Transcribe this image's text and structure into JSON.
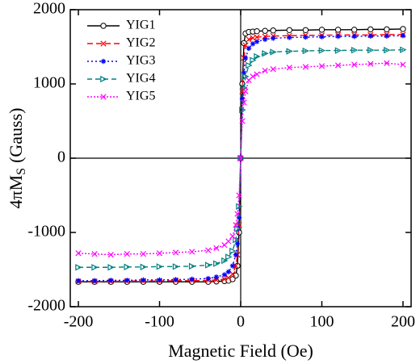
{
  "chart_data": {
    "type": "line",
    "xlabel": "Magnetic Field (Oe)",
    "ylabel_parts": [
      "4πM",
      "S",
      "(Gauss)"
    ],
    "x": [
      -200,
      -180,
      -160,
      -140,
      -120,
      -100,
      -80,
      -60,
      -40,
      -30,
      -20,
      -15,
      -10,
      -6,
      -4,
      -2,
      0,
      2,
      4,
      6,
      10,
      15,
      20,
      30,
      40,
      60,
      80,
      100,
      120,
      140,
      160,
      180,
      200
    ],
    "series": [
      {
        "name": "YIG1",
        "color": "#000000",
        "marker": "circle",
        "dash": "",
        "values": [
          -1665,
          -1665,
          -1665,
          -1665,
          -1665,
          -1665,
          -1665,
          -1665,
          -1665,
          -1660,
          -1655,
          -1650,
          -1630,
          -1580,
          -1450,
          -1000,
          0,
          1000,
          1550,
          1680,
          1700,
          1705,
          1710,
          1715,
          1720,
          1725,
          1725,
          1730,
          1730,
          1730,
          1735,
          1735,
          1740
        ]
      },
      {
        "name": "YIG2",
        "color": "#ff0000",
        "marker": "x",
        "dash": "7 4",
        "values": [
          -1660,
          -1660,
          -1660,
          -1655,
          -1655,
          -1655,
          -1650,
          -1650,
          -1645,
          -1640,
          -1630,
          -1610,
          -1560,
          -1450,
          -1300,
          -900,
          0,
          900,
          1350,
          1520,
          1600,
          1620,
          1630,
          1640,
          1645,
          1650,
          1655,
          1655,
          1660,
          1660,
          1660,
          1665,
          1665
        ]
      },
      {
        "name": "YIG3",
        "color": "#0000ff",
        "marker": "star",
        "dash": "2 3",
        "values": [
          -1650,
          -1650,
          -1645,
          -1645,
          -1640,
          -1640,
          -1635,
          -1630,
          -1620,
          -1600,
          -1570,
          -1530,
          -1450,
          -1300,
          -1150,
          -800,
          0,
          800,
          1150,
          1350,
          1480,
          1540,
          1570,
          1600,
          1615,
          1625,
          1630,
          1635,
          1640,
          1640,
          1645,
          1645,
          1650
        ]
      },
      {
        "name": "YIG4",
        "color": "#008080",
        "marker": "triangle",
        "dash": "6 4",
        "values": [
          -1470,
          -1470,
          -1470,
          -1465,
          -1465,
          -1460,
          -1460,
          -1455,
          -1440,
          -1420,
          -1380,
          -1330,
          -1250,
          -1100,
          -950,
          -650,
          0,
          650,
          950,
          1100,
          1250,
          1320,
          1370,
          1410,
          1430,
          1440,
          1445,
          1450,
          1450,
          1455,
          1455,
          1455,
          1460
        ]
      },
      {
        "name": "YIG5",
        "color": "#ff00ff",
        "marker": "x",
        "dash": "2 2",
        "values": [
          -1280,
          -1290,
          -1300,
          -1290,
          -1290,
          -1280,
          -1270,
          -1260,
          -1240,
          -1210,
          -1170,
          -1120,
          -1050,
          -900,
          -750,
          -500,
          0,
          500,
          750,
          900,
          1050,
          1100,
          1130,
          1180,
          1200,
          1220,
          1230,
          1240,
          1250,
          1260,
          1270,
          1280,
          1260
        ]
      }
    ],
    "xlim": [
      -210,
      210
    ],
    "ylim": [
      -2000,
      2000
    ],
    "xticks": [
      -200,
      -100,
      0,
      100,
      200
    ],
    "yticks": [
      -2000,
      -1000,
      0,
      1000,
      2000
    ],
    "legend": "upper left"
  }
}
